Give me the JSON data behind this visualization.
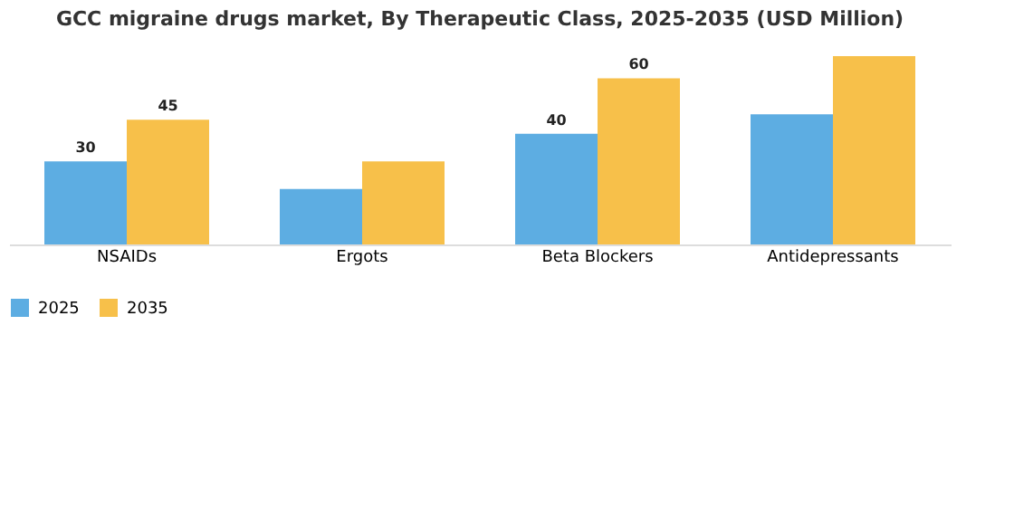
{
  "chart_data": {
    "type": "bar",
    "title": "GCC migraine drugs market, By Therapeutic Class, 2025-2035 (USD Million)",
    "categories": [
      "NSAIDs",
      "Ergots",
      "Beta Blockers",
      "Antidepressants"
    ],
    "series": [
      {
        "name": "2025",
        "color": "#5dade2",
        "values": [
          30,
          20,
          40,
          47
        ],
        "value_labels": [
          "30",
          null,
          "40",
          null
        ]
      },
      {
        "name": "2035",
        "color": "#f7c04a",
        "values": [
          45,
          30,
          60,
          68
        ],
        "value_labels": [
          "45",
          null,
          "60",
          null
        ]
      }
    ],
    "legend": "bottom",
    "grid": false,
    "tick_labels": "x"
  }
}
